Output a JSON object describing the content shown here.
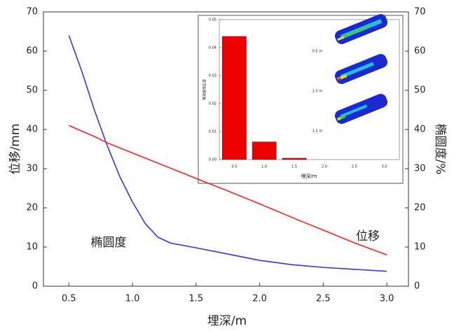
{
  "chart_data": [
    {
      "type": "line",
      "x_label": "埋深/m",
      "y_label": "位移/mm",
      "y2_label": "椭圆度/%",
      "annotations": [
        "椭圆度",
        "位移"
      ],
      "x": [
        0.5,
        0.6,
        0.7,
        0.8,
        0.9,
        1.0,
        1.1,
        1.2,
        1.3,
        1.5,
        1.75,
        2.0,
        2.25,
        2.5,
        2.75,
        3.0
      ],
      "series": [
        {
          "color": "#3333ff",
          "values": [
            64,
            55,
            45,
            36,
            28,
            21.5,
            16,
            12.5,
            11,
            9.8,
            8.2,
            6.6,
            5.5,
            4.8,
            4.3,
            3.8
          ]
        },
        {
          "color": "#ff2222",
          "values": [
            41,
            39.6,
            38.2,
            36.6,
            35.3,
            34,
            32.7,
            31.4,
            30.1,
            27.5,
            24.3,
            21,
            17.6,
            14.3,
            11,
            8
          ]
        }
      ],
      "xlim": [
        0.3,
        3.17
      ],
      "xticks": [
        0.5,
        {
          "value": 1,
          "label": "1.0"
        },
        1.5,
        {
          "value": 2,
          "label": "2.0"
        },
        2.5,
        {
          "value": 3,
          "label": "3.0"
        }
      ],
      "ylim": [
        0,
        70
      ],
      "yticks": [
        0,
        10,
        20,
        30,
        40,
        50,
        60,
        70
      ],
      "y2lim": [
        0,
        70
      ],
      "y2ticks": [
        0,
        10,
        20,
        30,
        40,
        50,
        60,
        70
      ]
    },
    {
      "type": "bar",
      "x_label": "埋深/m",
      "y_label": "等效塑性应变",
      "categories": [
        "0.5",
        "1.0",
        "1.5",
        "2.0",
        "2.5",
        "3.0"
      ],
      "values": [
        0.044,
        0.0063,
        0.0005,
        null,
        null,
        null
      ],
      "color": "#ee0000",
      "ylim": [
        0,
        0.05
      ],
      "yticks": [
        {
          "value": 0,
          "label": "0.00"
        },
        {
          "value": 0.01,
          "label": "0.01"
        },
        {
          "value": 0.02,
          "label": "0.02"
        },
        {
          "value": 0.03,
          "label": "0.03"
        },
        {
          "value": 0.04,
          "label": "0.04"
        },
        {
          "value": 0.05,
          "label": "0.05"
        }
      ],
      "panel_labels": [
        "0.5 m",
        "1.0 m",
        "1.5 m"
      ]
    }
  ]
}
